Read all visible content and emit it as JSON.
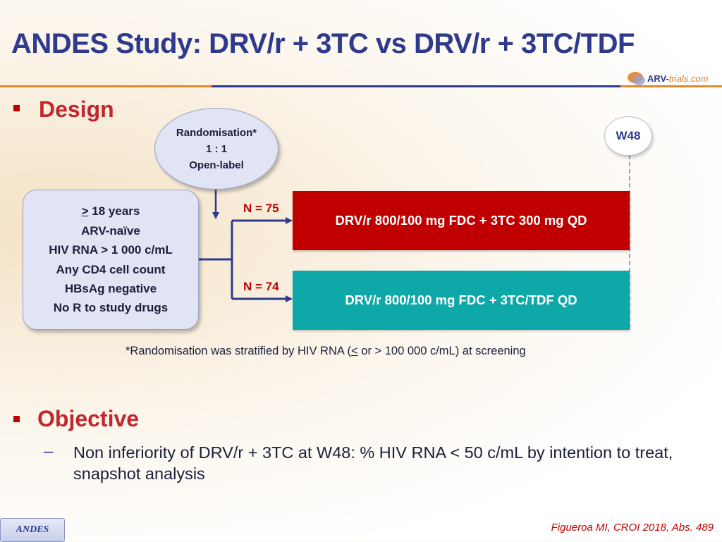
{
  "title": "ANDES Study: DRV/r + 3TC vs DRV/r + 3TC/TDF",
  "logo": {
    "part1": "ARV-",
    "part2": "trials",
    "part3": ".com"
  },
  "design": {
    "heading": "Design",
    "randomisation": [
      "Randomisation*",
      "1 : 1",
      "Open-label"
    ],
    "criteria": {
      "line1_symbol": ">",
      "line1_rest": " 18 years",
      "lines": [
        "ARV-naïve",
        "HIV RNA > 1 000 c/mL",
        "Any CD4 cell count",
        "HBsAg negative",
        "No R to study drugs"
      ]
    },
    "timepoint": "W48",
    "arms": [
      {
        "n_label": "N = 75",
        "regimen": "DRV/r 800/100 mg FDC + 3TC 300 mg QD",
        "color": "#c00000"
      },
      {
        "n_label": "N = 74",
        "regimen": "DRV/r 800/100 mg FDC + 3TC/TDF QD",
        "color": "#0fa8a8"
      }
    ],
    "footnote": {
      "before": "*Randomisation was stratified by HIV RNA (",
      "symbol": "<",
      "after": " or > 100 000 c/mL) at screening"
    }
  },
  "objective": {
    "heading": "Objective",
    "dash": "–",
    "text": "Non inferiority of DRV/r + 3TC at W48: % HIV RNA < 50 c/mL by intention to treat, snapshot analysis"
  },
  "footer": {
    "badge": "ANDES",
    "citation": "Figueroa MI, CROI 2018, Abs. 489"
  },
  "colors": {
    "title": "#2e3a8c",
    "accent_red": "#c00000",
    "teal": "#0fa8a8",
    "rule_orange": "#e08a2c"
  }
}
